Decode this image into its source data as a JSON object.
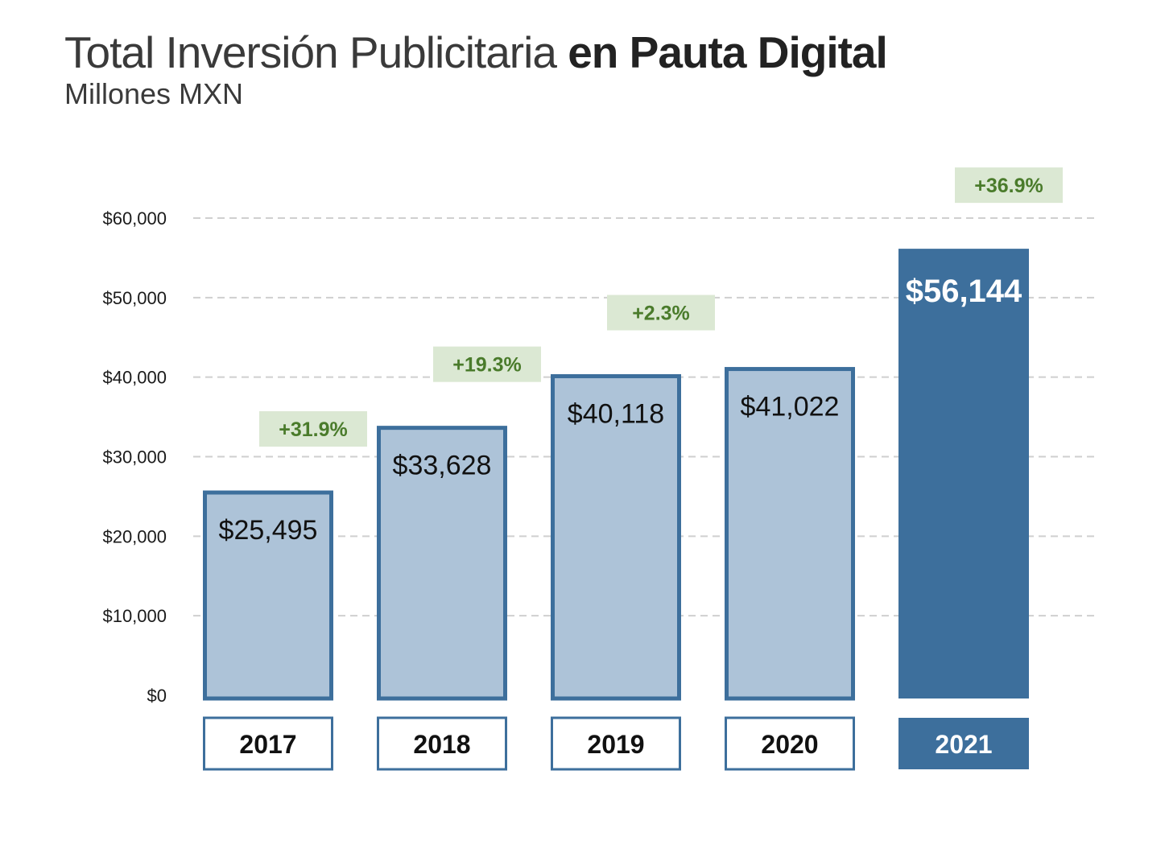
{
  "title_light": "Total Inversión Publicitaria",
  "title_bold": "en Pauta Digital",
  "subtitle": "Millones MXN",
  "colors": {
    "bar_light_fill": "#adc3d8",
    "bar_border": "#3d6f9c",
    "bar_highlight": "#3d6f9c",
    "growth_bg": "#dbe8d3",
    "growth_text": "#4a7b2b",
    "grid": "#cfcfcf"
  },
  "chart_data": {
    "type": "bar",
    "title": "Total Inversión Publicitaria en Pauta Digital",
    "subtitle": "Millones MXN",
    "categories": [
      "2017",
      "2018",
      "2019",
      "2020",
      "2021"
    ],
    "values": [
      25495,
      33628,
      40118,
      41022,
      56144
    ],
    "value_labels": [
      "$25,495",
      "$33,628",
      "$40,118",
      "$41,022",
      "$56,144"
    ],
    "growth_labels": [
      "+31.9%",
      "+19.3%",
      "+2.3%",
      "+36.9%"
    ],
    "growth_for_categories": [
      "2017",
      "2018",
      "2019",
      "2021"
    ],
    "highlight_category": "2021",
    "y_ticks": [
      0,
      10000,
      20000,
      30000,
      40000,
      50000,
      60000
    ],
    "y_tick_labels": [
      "$0",
      "$10,000",
      "$20,000",
      "$30,000",
      "$40,000",
      "$50,000",
      "$60,000"
    ],
    "ylim": [
      0,
      60000
    ],
    "grid": true,
    "legend": "none"
  }
}
